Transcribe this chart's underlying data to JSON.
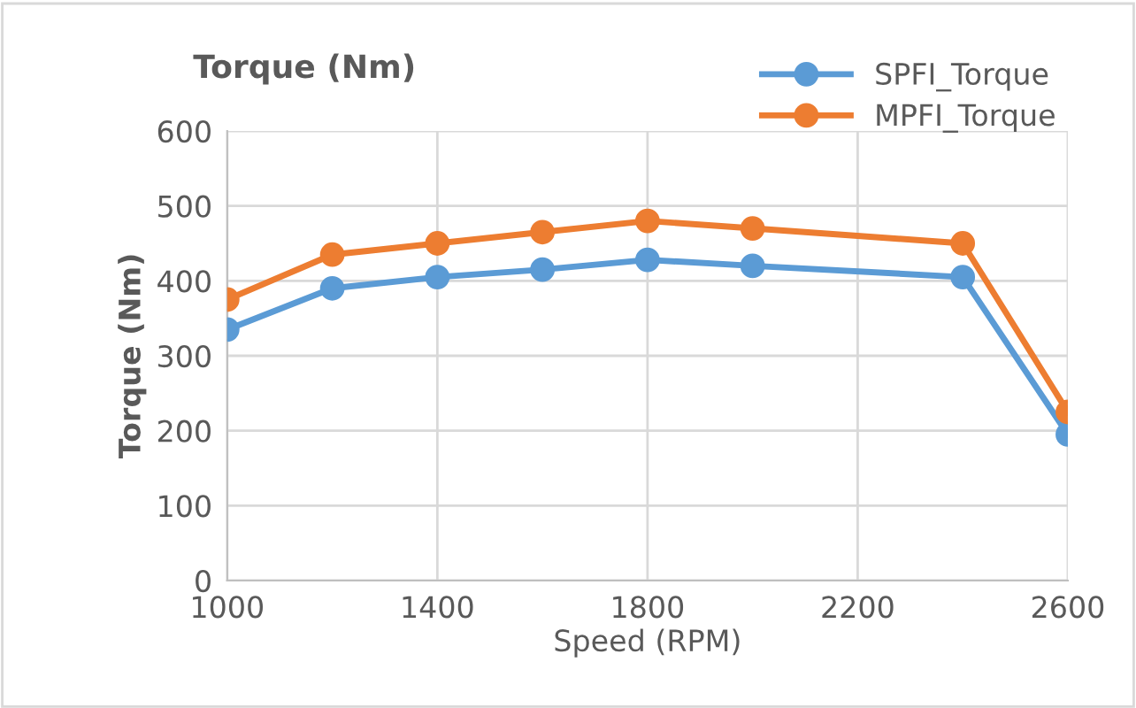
{
  "chart_data": {
    "type": "line",
    "title": "Torque (Nm)",
    "xlabel": "Speed (RPM)",
    "ylabel": "Torque (Nm)",
    "x": [
      1000,
      1200,
      1400,
      1600,
      1800,
      2000,
      2400,
      2600
    ],
    "series": [
      {
        "name": "SPFI_Torque",
        "color": "#5b9bd5",
        "values": [
          335,
          390,
          405,
          415,
          428,
          420,
          405,
          195
        ]
      },
      {
        "name": "MPFI_Torque",
        "color": "#ed7d31",
        "values": [
          375,
          435,
          450,
          465,
          480,
          470,
          450,
          225
        ]
      }
    ],
    "xlim": [
      1000,
      2600
    ],
    "xticks": [
      1000,
      1400,
      1800,
      2200,
      2600
    ],
    "ylim": [
      0,
      600
    ],
    "yticks": [
      0,
      100,
      200,
      300,
      400,
      500,
      600
    ],
    "grid": true,
    "legend": "top right",
    "marker": "circle",
    "line_style": "solid"
  }
}
